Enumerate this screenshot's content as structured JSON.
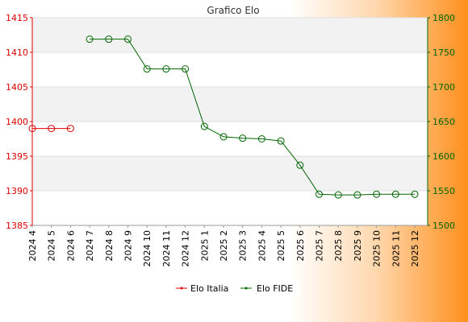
{
  "chart_data": {
    "type": "line",
    "title": "Grafico Elo",
    "categories": [
      "2024 4",
      "2024 5",
      "2024 6",
      "2024 7",
      "2024 8",
      "2024 9",
      "2024 10",
      "2024 11",
      "2024 12",
      "2025 1",
      "2025 2",
      "2025 3",
      "2025 4",
      "2025 5",
      "2025 6",
      "2025 7",
      "2025 8",
      "2025 9",
      "2025 10",
      "2025 11",
      "2025 12"
    ],
    "y_left": {
      "min": 1385,
      "max": 1415,
      "ticks": [
        1385,
        1390,
        1395,
        1400,
        1405,
        1410,
        1415
      ],
      "color": "#dd0000"
    },
    "y_right": {
      "min": 1500,
      "max": 1800,
      "ticks": [
        1500,
        1550,
        1600,
        1650,
        1700,
        1750,
        1800
      ],
      "color": "#006600"
    },
    "grid": true,
    "legend_position": "bottom",
    "series": [
      {
        "name": "Elo Italia",
        "axis": "left",
        "color": "#dd0000",
        "values": [
          1399,
          1399,
          1399,
          null,
          null,
          null,
          null,
          null,
          null,
          null,
          null,
          null,
          null,
          null,
          null,
          null,
          null,
          null,
          null,
          null,
          null
        ]
      },
      {
        "name": "Elo FIDE",
        "axis": "right",
        "color": "#006600",
        "values": [
          null,
          null,
          null,
          1769,
          1769,
          1769,
          1726,
          1726,
          1726,
          1643,
          1628,
          1626,
          1625,
          1622,
          1587,
          1545,
          1544,
          1544,
          1545,
          1545,
          1545
        ]
      }
    ]
  }
}
